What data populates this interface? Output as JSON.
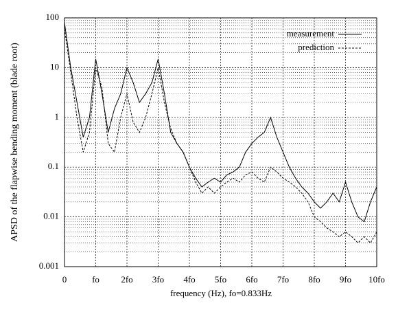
{
  "chart_data": {
    "type": "line",
    "xlabel": "frequency (Hz),  fo=0.833Hz",
    "ylabel": "APSD of the flapwise bending moment (blade root)",
    "x": [
      0,
      0.1666,
      0.3332,
      0.4998,
      0.6664,
      0.833,
      0.9996,
      1.1662,
      1.3328,
      1.4994,
      1.666,
      1.8326,
      1.9992,
      2.1658,
      2.3324,
      2.499,
      2.6656,
      2.8322,
      2.9988,
      3.1654,
      3.332,
      3.4986,
      3.6652,
      3.8318,
      3.9984,
      4.165,
      4.3316,
      4.4982,
      4.6648,
      4.8314,
      4.998,
      5.1646,
      5.3312,
      5.4978,
      5.6644,
      5.831,
      5.9976,
      6.1642,
      6.3308,
      6.4974,
      6.664,
      6.8306,
      6.9972,
      7.1638,
      7.3304,
      7.497,
      7.6636,
      7.8302,
      7.9968,
      8.1634,
      8.33
    ],
    "series": [
      {
        "name": "measurement",
        "color": "#000000",
        "style": "solid",
        "values": [
          80,
          10,
          2,
          0.4,
          1,
          15,
          3,
          0.5,
          1.5,
          3,
          10,
          5,
          2,
          3,
          5,
          15,
          3,
          0.5,
          0.3,
          0.2,
          0.1,
          0.06,
          0.04,
          0.05,
          0.06,
          0.05,
          0.07,
          0.08,
          0.1,
          0.2,
          0.3,
          0.4,
          0.5,
          1,
          0.4,
          0.2,
          0.1,
          0.06,
          0.04,
          0.03,
          0.02,
          0.015,
          0.02,
          0.03,
          0.02,
          0.05,
          0.02,
          0.01,
          0.008,
          0.02,
          0.04
        ]
      },
      {
        "name": "prediction",
        "color": "#000000",
        "style": "dashed",
        "values": [
          60,
          8,
          1,
          0.2,
          0.5,
          10,
          4,
          0.3,
          0.2,
          1,
          3,
          0.8,
          0.5,
          1,
          3,
          10,
          2,
          0.6,
          0.3,
          0.2,
          0.1,
          0.05,
          0.03,
          0.04,
          0.03,
          0.04,
          0.05,
          0.06,
          0.05,
          0.07,
          0.08,
          0.06,
          0.05,
          0.1,
          0.08,
          0.06,
          0.05,
          0.04,
          0.03,
          0.02,
          0.01,
          0.008,
          0.006,
          0.005,
          0.004,
          0.005,
          0.004,
          0.003,
          0.004,
          0.003,
          0.005
        ]
      }
    ],
    "xlim": [
      0,
      8.33
    ],
    "xticks": [
      0,
      {
        "value": 0.833,
        "label": "fo"
      },
      {
        "value": 1.666,
        "label": "2fo"
      },
      {
        "value": 2.499,
        "label": "3fo"
      },
      {
        "value": 3.332,
        "label": "4fo"
      },
      {
        "value": 4.165,
        "label": "5fo"
      },
      {
        "value": 4.998,
        "label": "6fo"
      },
      {
        "value": 5.831,
        "label": "7fo"
      },
      {
        "value": 6.664,
        "label": "8fo"
      },
      {
        "value": 7.497,
        "label": "9fo"
      },
      {
        "value": 8.33,
        "label": "10fo"
      }
    ],
    "ylim": [
      0.001,
      100
    ],
    "yticks": [
      0.001,
      0.01,
      0.1,
      1,
      10,
      100
    ],
    "ylog": true,
    "grid": true,
    "legend": "upper right"
  }
}
